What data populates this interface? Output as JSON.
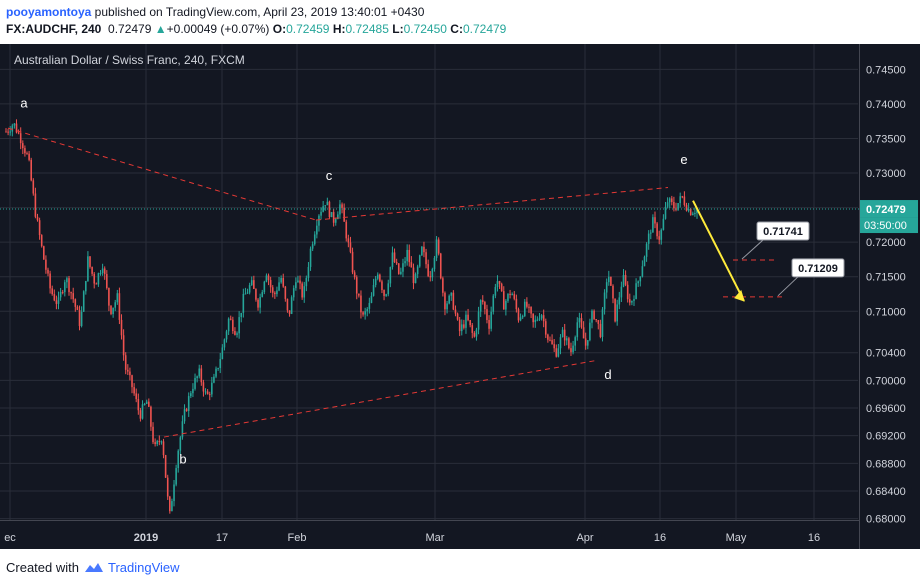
{
  "header": {
    "author": "pooyamontoya",
    "published_text": " published on TradingView.com, April 23, 2019 13:40:01 +0430",
    "symbol": "FX:AUDCHF, 240",
    "last": "0.72479",
    "change": "+0.00049 (+0.07%)",
    "o_label": "O:",
    "o_value": "0.72459",
    "h_label": "H:",
    "h_value": "0.72485",
    "l_label": "L:",
    "l_value": "0.72450",
    "c_label": "C:",
    "c_value": "0.72479"
  },
  "footer": {
    "created_with": "Created with",
    "brand": "TradingView"
  },
  "colors": {
    "background": "#131722",
    "grid": "#2a2e39",
    "up": "#26a69a",
    "down": "#ef5350",
    "price_line": "#26a69a",
    "trendline": "#e53935",
    "projection": "#ffeb3b",
    "axis_text": "#d1d4dc"
  },
  "chart_data": {
    "type": "candlestick",
    "title": "Australian Dollar / Swiss Franc, 240, FXCM",
    "ylim": [
      0.6798,
      0.7478
    ],
    "y_ticks": [
      "0.74500",
      "0.74000",
      "0.73500",
      "0.73000",
      "0.72500",
      "0.72000",
      "0.71500",
      "0.71000",
      "0.70400",
      "0.70000",
      "0.69600",
      "0.69200",
      "0.68800",
      "0.68400",
      "0.68000"
    ],
    "x_ticks": [
      "ec",
      "2019",
      "17",
      "Feb",
      "Mar",
      "Apr",
      "16",
      "May",
      "16"
    ],
    "current_price": "0.72479",
    "countdown": "03:50:00",
    "targets": [
      "0.71741",
      "0.71209"
    ],
    "wave_labels": [
      "a",
      "b",
      "c",
      "d",
      "e"
    ],
    "price_path": [
      [
        0.736,
        0.7372,
        0.735,
        0.732,
        0.724,
        0.718,
        0.713,
        0.711,
        0.715,
        0.712,
        0.708,
        0.7175,
        0.714,
        0.717,
        0.71,
        0.712,
        0.702,
        0.699,
        0.695,
        0.697,
        0.69,
        0.692,
        0.68,
        0.689,
        0.695,
        0.699,
        0.701,
        0.6975,
        0.7,
        0.704,
        0.709,
        0.707,
        0.712,
        0.714,
        0.711,
        0.716,
        0.712,
        0.715,
        0.709,
        0.715,
        0.712,
        0.719,
        0.724,
        0.726,
        0.723,
        0.7255,
        0.72,
        0.714,
        0.709,
        0.711,
        0.716,
        0.712,
        0.718,
        0.715,
        0.7185,
        0.714,
        0.719,
        0.715,
        0.72,
        0.711,
        0.712,
        0.707,
        0.709,
        0.706,
        0.712,
        0.708,
        0.715,
        0.711,
        0.713,
        0.709,
        0.711,
        0.708,
        0.71,
        0.706,
        0.704,
        0.707,
        0.704,
        0.709,
        0.705,
        0.71,
        0.707,
        0.716,
        0.709,
        0.715,
        0.711,
        0.714,
        0.7185,
        0.723,
        0.7205,
        0.726,
        0.725,
        0.7265,
        0.7245,
        0.7248
      ]
    ]
  }
}
